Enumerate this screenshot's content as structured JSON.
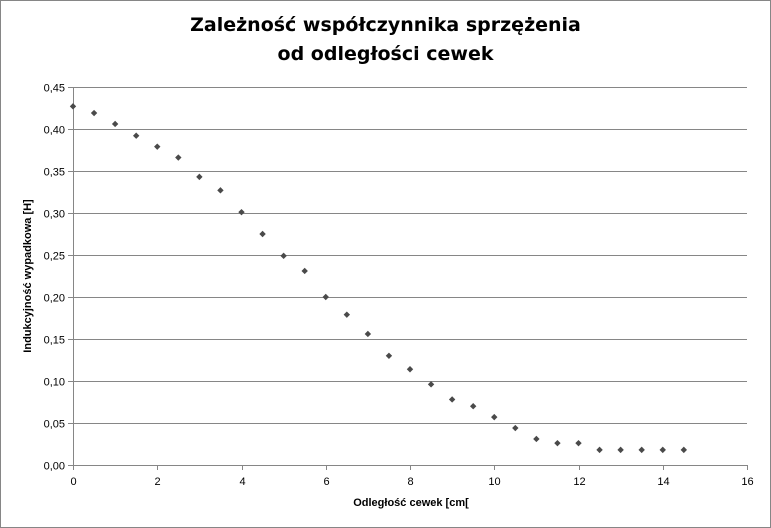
{
  "chart_data": {
    "type": "scatter",
    "title_lines": [
      "Zależność współczynnika sprzężenia",
      "od odległości cewek"
    ],
    "xlabel": "Odległość cewek [cm[",
    "ylabel": "Indukcyjność  wypadkowa [H]",
    "xlim": [
      0,
      16
    ],
    "ylim": [
      0,
      0.45
    ],
    "x_ticks": [
      0,
      2,
      4,
      6,
      8,
      10,
      12,
      14,
      16
    ],
    "x_tick_labels": [
      "0",
      "2",
      "4",
      "6",
      "8",
      "10",
      "12",
      "14",
      "16"
    ],
    "y_ticks": [
      0,
      0.05,
      0.1,
      0.15,
      0.2,
      0.25,
      0.3,
      0.35,
      0.4,
      0.45
    ],
    "y_tick_labels": [
      "0,00",
      "0,05",
      "0,10",
      "0,15",
      "0,20",
      "0,25",
      "0,30",
      "0,35",
      "0,40",
      "0,45"
    ],
    "grid": "horizontal",
    "marker_color": "#4a4a4a",
    "grid_color": "#868686",
    "series": [
      {
        "x": [
          0,
          0.5,
          1,
          1.5,
          2,
          2.5,
          3,
          3.5,
          4,
          4.5,
          5,
          5.5,
          6,
          6.5,
          7,
          7.5,
          8,
          8.5,
          9,
          9.5,
          10,
          10.5,
          11,
          11.5,
          12,
          12.5,
          13,
          13.5,
          14,
          14.5
        ],
        "y": [
          0.427,
          0.419,
          0.406,
          0.392,
          0.379,
          0.366,
          0.343,
          0.327,
          0.301,
          0.275,
          0.249,
          0.231,
          0.2,
          0.179,
          0.156,
          0.13,
          0.114,
          0.096,
          0.078,
          0.07,
          0.057,
          0.044,
          0.031,
          0.026,
          0.026,
          0.018,
          0.018,
          0.018,
          0.018,
          0.018
        ]
      }
    ]
  }
}
